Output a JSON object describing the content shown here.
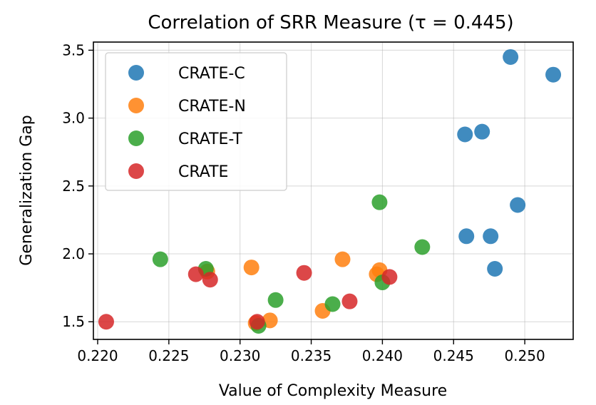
{
  "chart_data": {
    "type": "scatter",
    "title": "Correlation of SRR Measure (τ = 0.445)",
    "xlabel": "Value of Complexity Measure",
    "ylabel": "Generalization Gap",
    "xlim": [
      0.2197,
      0.2534
    ],
    "ylim": [
      1.37,
      3.56
    ],
    "xticks": [
      "0.220",
      "0.225",
      "0.230",
      "0.235",
      "0.240",
      "0.245",
      "0.250"
    ],
    "yticks": [
      "1.5",
      "2.0",
      "2.5",
      "3.0",
      "3.5"
    ],
    "grid": true,
    "legend_position": "upper-left",
    "series": [
      {
        "name": "CRATE-C",
        "color": "#1f77b4",
        "points": [
          [
            0.249,
            3.45
          ],
          [
            0.252,
            3.32
          ],
          [
            0.2458,
            2.88
          ],
          [
            0.247,
            2.9
          ],
          [
            0.2495,
            2.36
          ],
          [
            0.2459,
            2.13
          ],
          [
            0.2476,
            2.13
          ],
          [
            0.2479,
            1.89
          ]
        ]
      },
      {
        "name": "CRATE-N",
        "color": "#ff7f0e",
        "points": [
          [
            0.2308,
            1.9
          ],
          [
            0.2372,
            1.96
          ],
          [
            0.2396,
            1.85
          ],
          [
            0.2398,
            1.88
          ],
          [
            0.2358,
            1.58
          ],
          [
            0.2321,
            1.51
          ],
          [
            0.2277,
            1.87
          ],
          [
            0.2311,
            1.49
          ]
        ]
      },
      {
        "name": "CRATE-T",
        "color": "#2ca02c",
        "points": [
          [
            0.2244,
            1.96
          ],
          [
            0.2276,
            1.89
          ],
          [
            0.2398,
            2.38
          ],
          [
            0.2428,
            2.05
          ],
          [
            0.2325,
            1.66
          ],
          [
            0.2365,
            1.63
          ],
          [
            0.2313,
            1.47
          ],
          [
            0.24,
            1.79
          ]
        ]
      },
      {
        "name": "CRATE",
        "color": "#d62728",
        "points": [
          [
            0.2206,
            1.5
          ],
          [
            0.2269,
            1.85
          ],
          [
            0.2279,
            1.81
          ],
          [
            0.2345,
            1.86
          ],
          [
            0.2377,
            1.65
          ],
          [
            0.2405,
            1.83
          ],
          [
            0.2312,
            1.5
          ]
        ]
      }
    ]
  }
}
